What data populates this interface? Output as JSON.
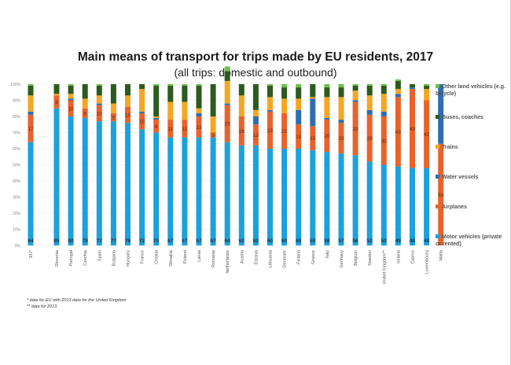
{
  "chart_data": {
    "type": "bar",
    "stacked": true,
    "title": "Main means of transport for trips made by EU residents, 2017",
    "subtitle": "(all trips: domestic and outbound)",
    "xlabel": "",
    "ylabel": "",
    "ylim": [
      0,
      100
    ],
    "yticks": [
      "0%",
      "10%",
      "20%",
      "30%",
      "40%",
      "50%",
      "60%",
      "70%",
      "80%",
      "90%",
      "100%"
    ],
    "grid": true,
    "legend_position": "right",
    "categories": [
      "EU*",
      "Slovenia",
      "Portugal",
      "Czechia",
      "Spain",
      "Bulgaria",
      "Hungary",
      "France",
      "Croatia",
      "Slovakia",
      "Poland",
      "Latvia",
      "Romania",
      "Netherlands",
      "Austria",
      "Estonia",
      "Lithuania",
      "Denmark",
      "Finland",
      "Greece",
      "Italy",
      "Germany",
      "Belgium",
      "Sweden",
      "United Kingdom**",
      "Ireland",
      "Cyprus",
      "Luxembourg",
      "Malta"
    ],
    "gap_after_index": 0,
    "series": [
      {
        "name": "Motor vehicles (private or rented)",
        "color": "#1ba1dd",
        "values": [
          64,
          85,
          80,
          79,
          77,
          77,
          76,
          72,
          70,
          67,
          67,
          67,
          67,
          64,
          62,
          62,
          60,
          60,
          60,
          59,
          58,
          57,
          56,
          52,
          50,
          49,
          48,
          48,
          0
        ],
        "labeled": true
      },
      {
        "name": "Airplanes",
        "color": "#e8632b",
        "values": [
          17,
          8,
          10,
          6,
          10,
          5,
          10,
          10,
          8,
          11,
          11,
          13,
          3,
          23,
          18,
          13,
          23,
          22,
          15,
          15,
          20,
          19,
          33,
          29,
          30,
          43,
          49,
          42,
          63
        ],
        "labeled": true
      },
      {
        "name": "Water vessels",
        "color": "#2e6db3",
        "values": [
          2,
          0,
          1,
          0,
          1,
          0,
          0,
          1,
          1,
          0,
          0,
          2,
          0,
          1,
          0,
          5,
          1,
          0,
          9,
          17,
          1,
          2,
          1,
          3,
          3,
          2,
          1,
          0,
          37
        ],
        "labeled": false
      },
      {
        "name": "Trains",
        "color": "#f5a623",
        "values": [
          10,
          1,
          3,
          6,
          5,
          6,
          7,
          14,
          1,
          11,
          11,
          3,
          10,
          14,
          13,
          4,
          8,
          9,
          7,
          1,
          13,
          14,
          6,
          9,
          11,
          3,
          0,
          7,
          0
        ],
        "labeled": false
      },
      {
        "name": "Buses, coaches",
        "color": "#2d5a1e",
        "values": [
          6,
          6,
          5,
          9,
          6,
          12,
          7,
          3,
          19,
          10,
          10,
          14,
          20,
          6,
          7,
          16,
          7,
          7,
          7,
          8,
          6,
          6,
          3,
          6,
          5,
          5,
          2,
          2,
          0
        ],
        "labeled": false
      },
      {
        "name": "Other land vehicles (e.g. bicycle)",
        "color": "#6cc04a",
        "values": [
          1,
          0,
          1,
          0,
          1,
          0,
          0,
          0,
          1,
          1,
          1,
          1,
          0,
          3,
          0,
          0,
          1,
          2,
          2,
          0,
          2,
          2,
          1,
          1,
          1,
          1,
          0,
          1,
          0
        ],
        "labeled": false
      }
    ],
    "legend_order": [
      "Other land vehicles (e.g. bicycle)",
      "Buses, coaches",
      "Trains",
      "Water vessels",
      "Airplanes",
      "Motor vehicles (private or rented)"
    ]
  },
  "footnotes": [
    "* data for EU with 2013 data for the United Kingdom",
    "** data for 2013"
  ]
}
